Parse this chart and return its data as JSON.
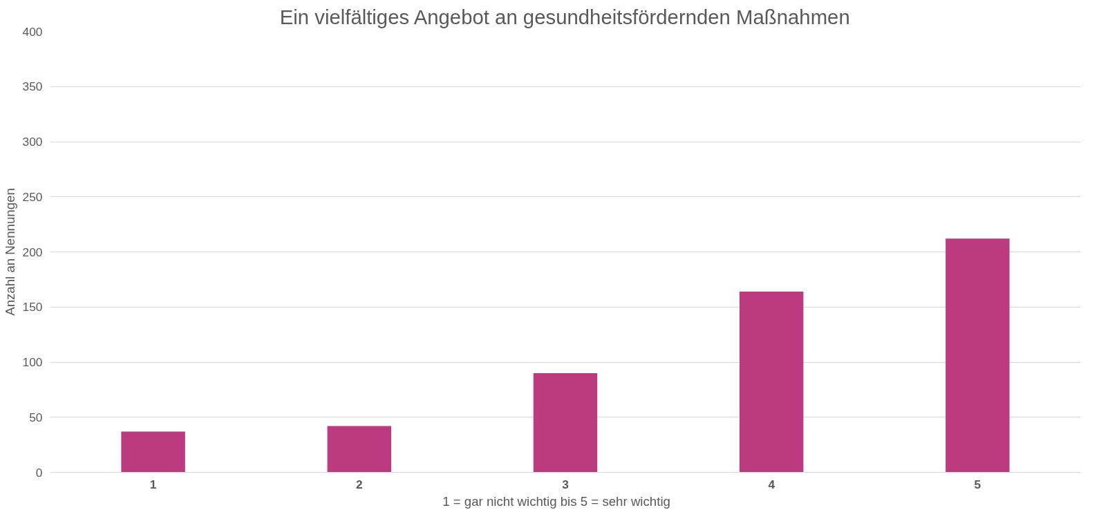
{
  "chart_data": {
    "type": "bar",
    "title": "Ein vielfältiges Angebot an gesundheitsfördernden Maßnahmen",
    "xlabel": "1 = gar nicht wichtig    bis   5 = sehr wichtig",
    "ylabel": "Anzahl an Nennungen",
    "categories": [
      "1",
      "2",
      "3",
      "4",
      "5"
    ],
    "values": [
      37,
      42,
      90,
      164,
      212
    ],
    "color": "#bb3a80",
    "ylim": [
      0,
      400
    ],
    "yticks": [
      0,
      50,
      100,
      150,
      200,
      250,
      300,
      350,
      400
    ],
    "grid": "y"
  }
}
